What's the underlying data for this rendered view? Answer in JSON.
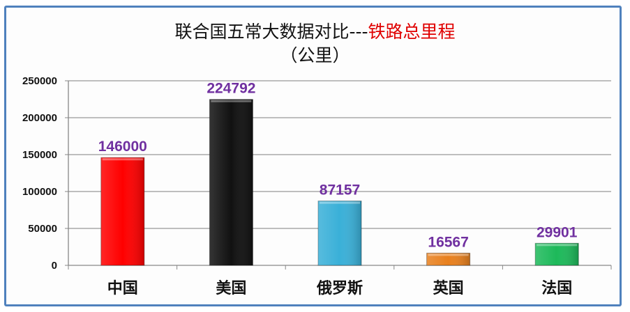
{
  "chart_data": {
    "type": "bar",
    "title": "联合国五常大数据对比---",
    "title_highlight": "铁路总里程",
    "subtitle": "（公里）",
    "xlabel": "",
    "ylabel": "",
    "ylim": [
      0,
      250000
    ],
    "yticks": [
      0,
      50000,
      100000,
      150000,
      200000,
      250000
    ],
    "grid": true,
    "categories": [
      "中国",
      "美国",
      "俄罗斯",
      "英国",
      "法国"
    ],
    "values": [
      146000,
      224792,
      87157,
      16567,
      29901
    ],
    "colors": [
      "#ff0000",
      "#111111",
      "#3ab0d8",
      "#e8801e",
      "#1db95a"
    ],
    "label_color": "#7030a0",
    "title_highlight_color": "#e00000",
    "frame_color": "#4f81bd"
  }
}
